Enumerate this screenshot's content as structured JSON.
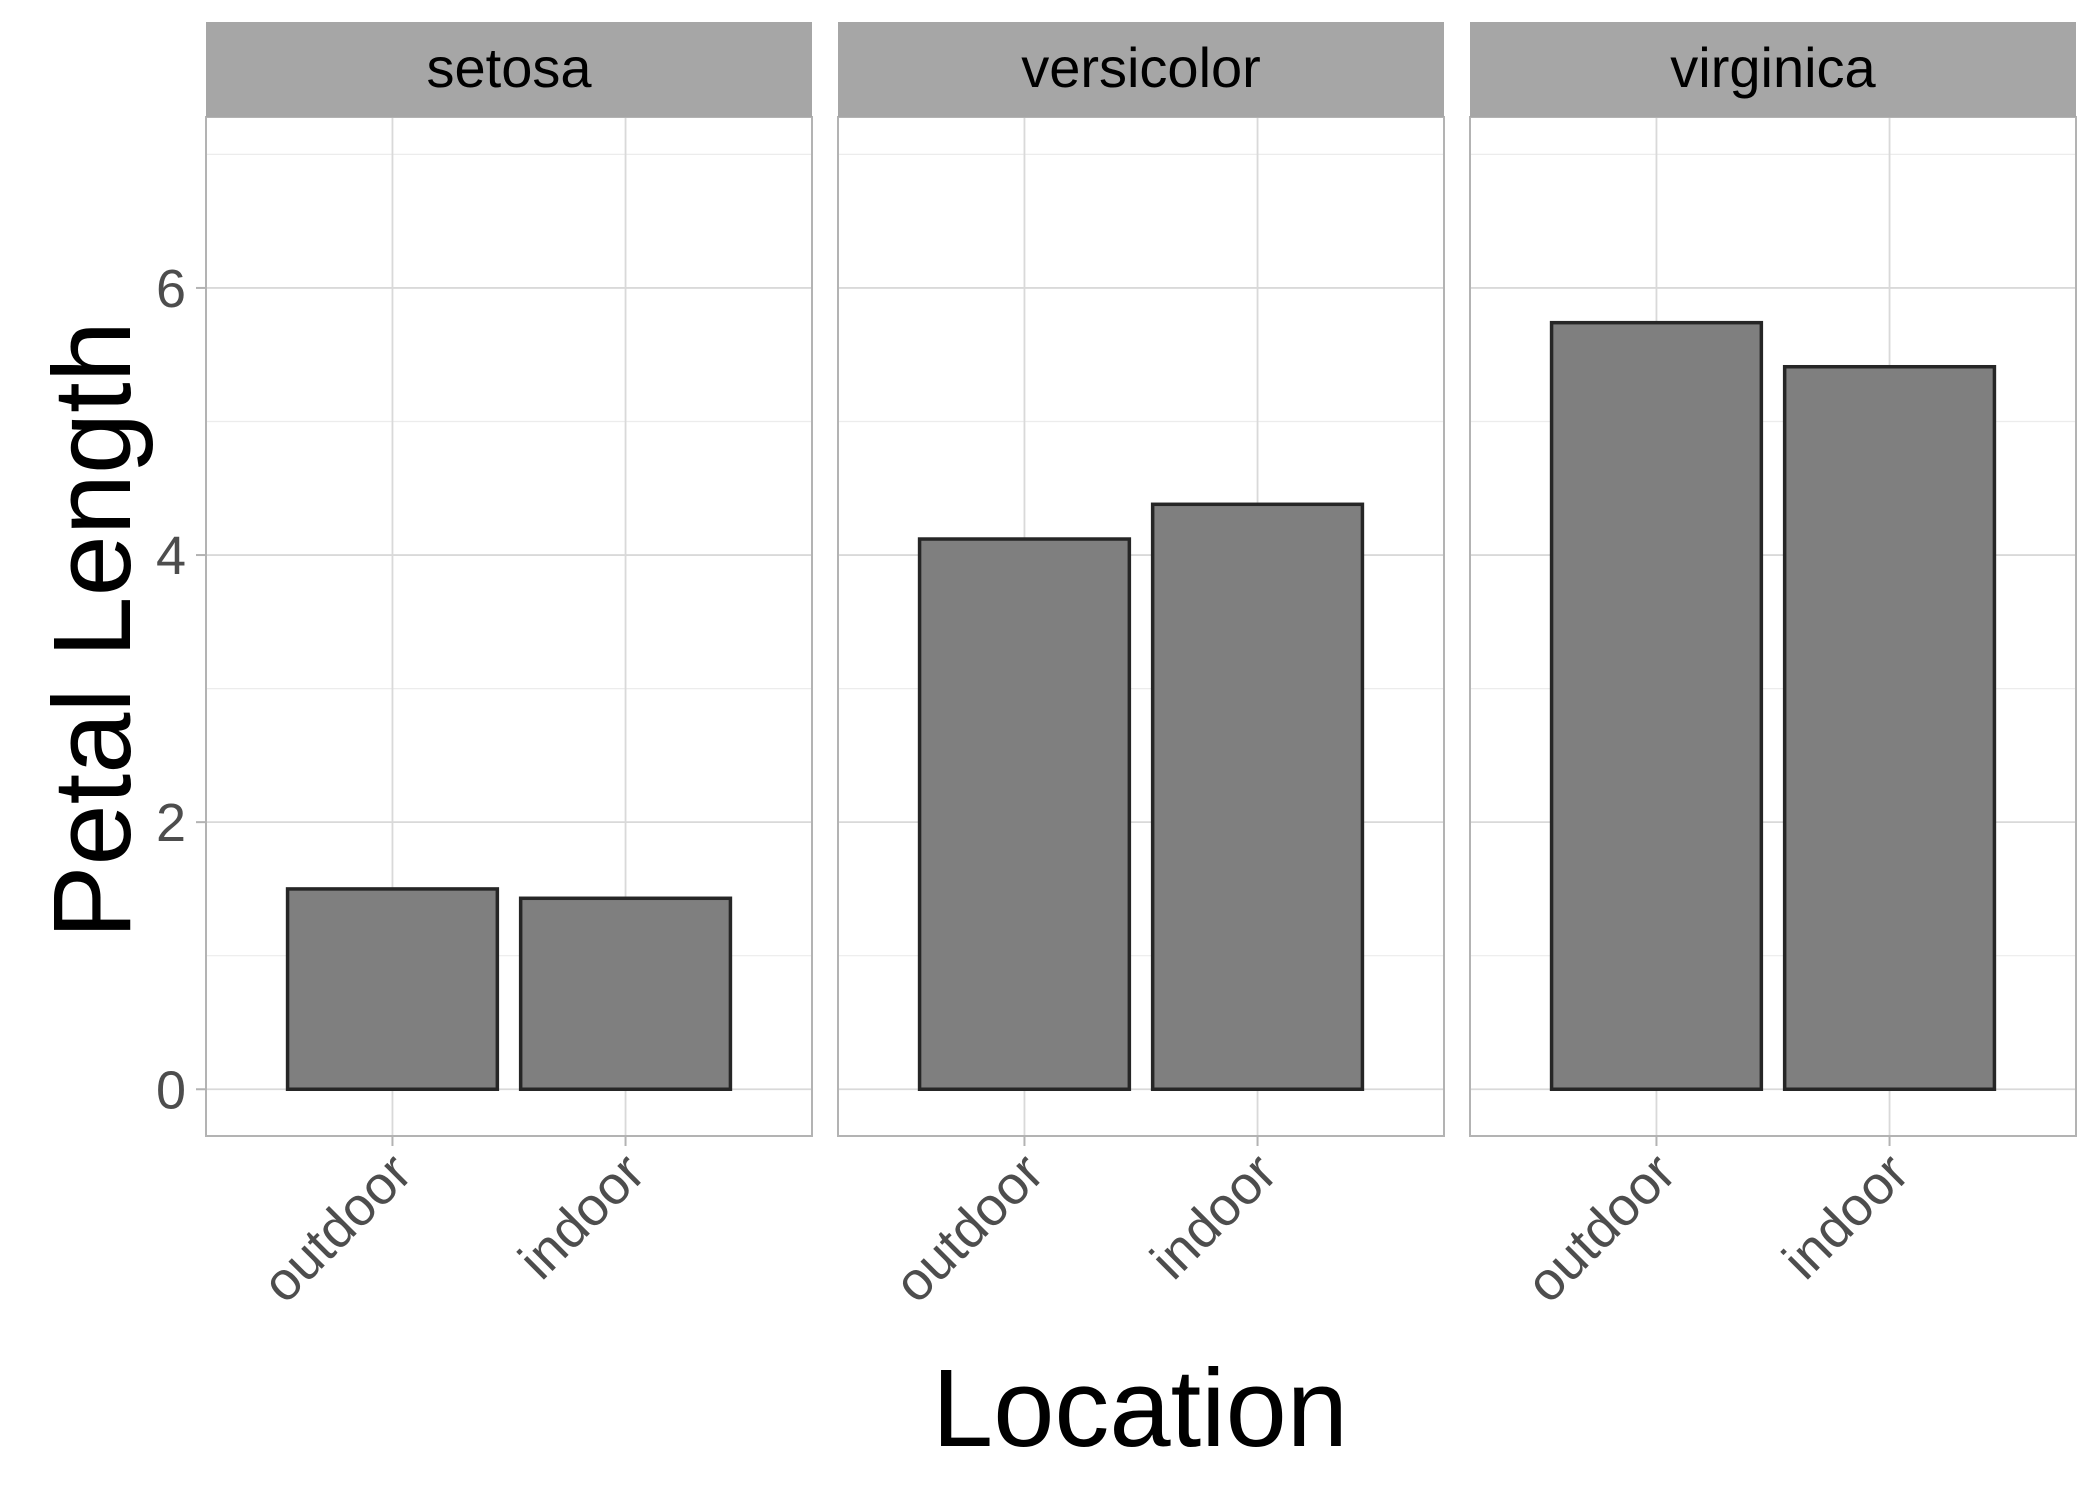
{
  "chart_data": {
    "type": "bar",
    "facet_by": "species",
    "xlabel": "Location",
    "ylabel": "Petal Length",
    "ylim": [
      -0.35,
      7.28
    ],
    "yticks": [
      0,
      2,
      4,
      6
    ],
    "grid": true,
    "legend": "none",
    "categories": [
      "outdoor",
      "indoor"
    ],
    "panels": [
      {
        "title": "setosa",
        "values": [
          1.5,
          1.43
        ]
      },
      {
        "title": "versicolor",
        "values": [
          4.12,
          4.38
        ]
      },
      {
        "title": "virginica",
        "values": [
          5.74,
          5.41
        ]
      }
    ]
  },
  "colors": {
    "bar_fill": "#7f7f7f",
    "bar_stroke": "#262626",
    "strip_fill": "#a6a6a6",
    "panel_border": "#b3b3b3",
    "grid_major": "#d9d9d9",
    "grid_minor": "#ececec",
    "tick_text": "#4d4d4d",
    "title_text": "#000000"
  }
}
